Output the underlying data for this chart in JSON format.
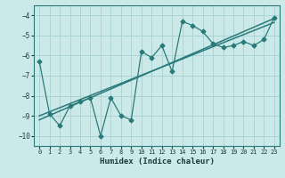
{
  "xlabel": "Humidex (Indice chaleur)",
  "ylabel": "",
  "x_data": [
    0,
    1,
    2,
    3,
    4,
    5,
    6,
    7,
    8,
    9,
    10,
    11,
    12,
    13,
    14,
    15,
    16,
    17,
    18,
    19,
    20,
    21,
    22,
    23
  ],
  "y_data": [
    -6.3,
    -8.9,
    -9.5,
    -8.5,
    -8.3,
    -8.1,
    -10.0,
    -8.1,
    -9.0,
    -9.2,
    -5.8,
    -6.1,
    -5.5,
    -6.8,
    -4.3,
    -4.5,
    -4.8,
    -5.4,
    -5.6,
    -5.5,
    -5.3,
    -5.5,
    -5.2,
    -4.1
  ],
  "trend_x": [
    0,
    23
  ],
  "trend_y": [
    -9.2,
    -4.15
  ],
  "trend2_x": [
    0,
    23
  ],
  "trend2_y": [
    -9.0,
    -4.35
  ],
  "bg_color": "#cce9e9",
  "grid_color": "#aad4d4",
  "line_color": "#2a7a7a",
  "marker": "D",
  "markersize": 2.5,
  "ylim": [
    -10.5,
    -3.5
  ],
  "xlim": [
    -0.5,
    23.5
  ],
  "yticks": [
    -10,
    -9,
    -8,
    -7,
    -6,
    -5,
    -4
  ],
  "xticks": [
    0,
    1,
    2,
    3,
    4,
    5,
    6,
    7,
    8,
    9,
    10,
    11,
    12,
    13,
    14,
    15,
    16,
    17,
    18,
    19,
    20,
    21,
    22,
    23
  ]
}
